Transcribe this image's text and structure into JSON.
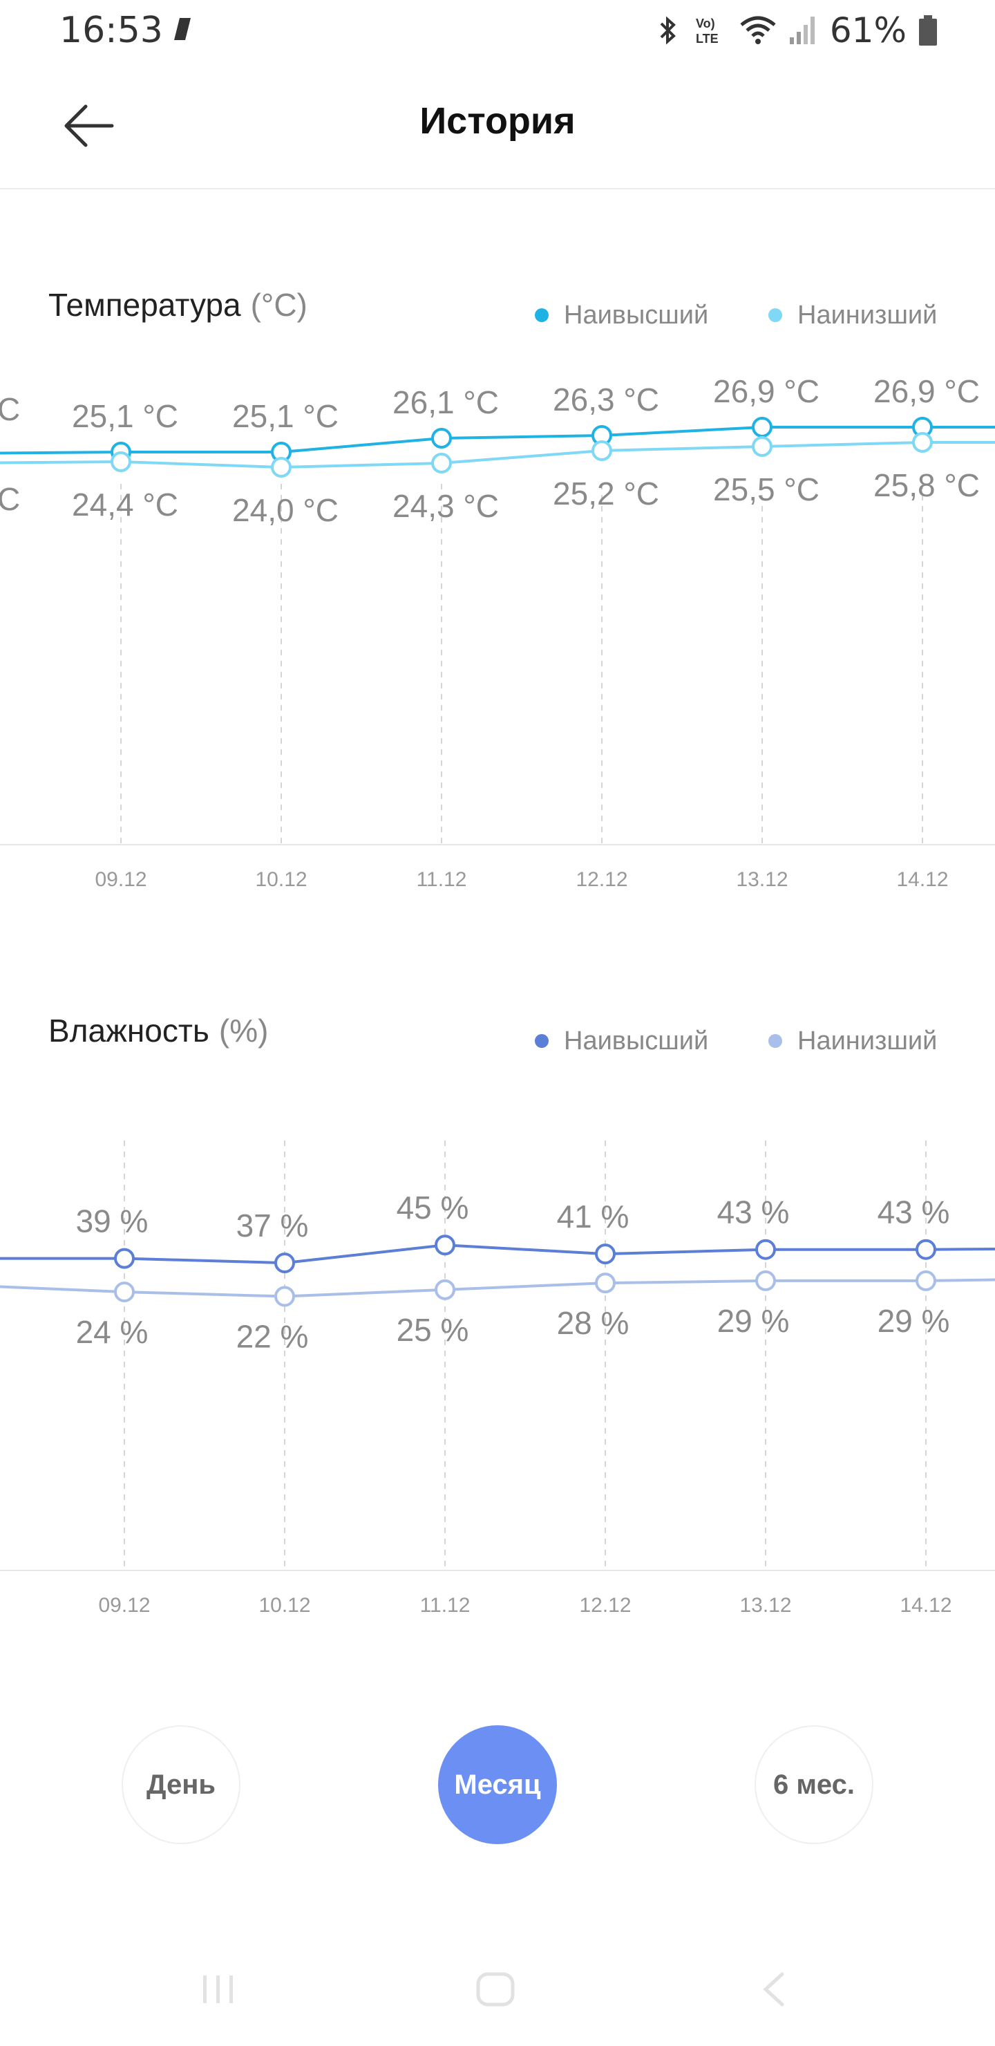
{
  "status_bar": {
    "time": "16:53",
    "battery_percent": "61%",
    "icons": [
      "app-notification-icon",
      "bluetooth-icon",
      "volte-icon",
      "wifi-icon",
      "signal-icon",
      "battery-icon"
    ]
  },
  "header": {
    "title": "История",
    "back_icon": "arrow-left-icon"
  },
  "charts": [
    {
      "id": "temperature",
      "title": "Температура",
      "unit_suffix": "(°C)",
      "legend": {
        "high": "Наивысший",
        "low": "Наинизший"
      },
      "colors": {
        "high": "#1fb2e5",
        "low": "#7fd8f5"
      },
      "partial_left_labels": {
        "high": "C",
        "low": "C"
      }
    },
    {
      "id": "humidity",
      "title": "Влажность",
      "unit_suffix": "(%)",
      "legend": {
        "high": "Наивысший",
        "low": "Наинизший"
      },
      "colors": {
        "high": "#5b7ed6",
        "low": "#a9bfea"
      }
    }
  ],
  "chart_data": [
    {
      "type": "line",
      "title": "Температура (°C)",
      "categories": [
        "09.12",
        "10.12",
        "11.12",
        "12.12",
        "13.12",
        "14.12"
      ],
      "series": [
        {
          "name": "Наивысший",
          "values": [
            25.1,
            25.1,
            26.1,
            26.3,
            26.9,
            26.9
          ],
          "labels": [
            "25,1 °C",
            "25,1 °C",
            "26,1 °C",
            "26,3 °C",
            "26,9 °C",
            "26,9 °C"
          ]
        },
        {
          "name": "Наинизший",
          "values": [
            24.4,
            24.0,
            24.3,
            25.2,
            25.5,
            25.8
          ],
          "labels": [
            "24,4 °C",
            "24,0 °C",
            "24,3 °C",
            "25,2 °C",
            "25,5 °C",
            "25,8 °C"
          ]
        }
      ],
      "grid": "dashed-vertical",
      "legend_position": "top-right"
    },
    {
      "type": "line",
      "title": "Влажность (%)",
      "categories": [
        "09.12",
        "10.12",
        "11.12",
        "12.12",
        "13.12",
        "14.12"
      ],
      "series": [
        {
          "name": "Наивысший",
          "values": [
            39,
            37,
            45,
            41,
            43,
            43
          ],
          "labels": [
            "39 %",
            "37 %",
            "45 %",
            "41 %",
            "43 %",
            "43 %"
          ]
        },
        {
          "name": "Наинизший",
          "values": [
            24,
            22,
            25,
            28,
            29,
            29
          ],
          "labels": [
            "24 %",
            "22 %",
            "25 %",
            "28 %",
            "29 %",
            "29 %"
          ]
        }
      ],
      "grid": "dashed-vertical",
      "legend_position": "top-right"
    }
  ],
  "range_selector": {
    "options": [
      "День",
      "Месяц",
      "6 мес."
    ],
    "selected": "Месяц"
  },
  "nav_bar": {
    "icons": [
      "recent-apps-icon",
      "home-icon",
      "back-nav-icon"
    ]
  }
}
